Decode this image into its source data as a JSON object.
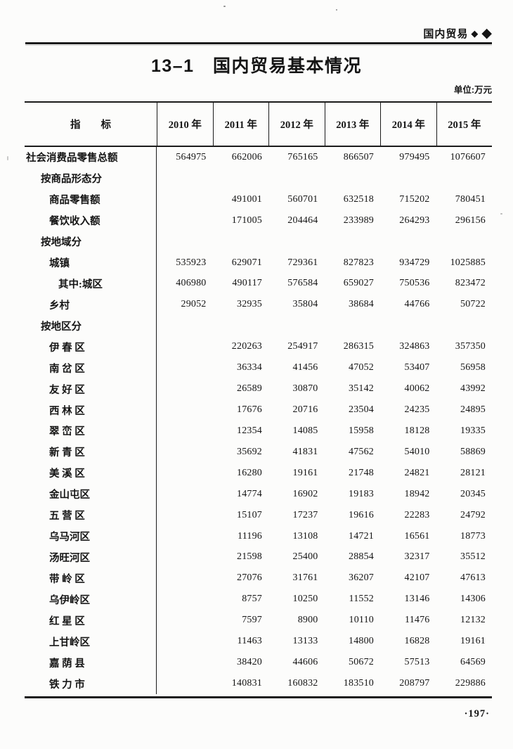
{
  "page_header": {
    "section_label": "国内贸易",
    "diamond_small": "◆",
    "diamond_large": "◆"
  },
  "title": "13–1　国内贸易基本情况",
  "unit_label": "单位:万元",
  "page_number": "·197·",
  "chart_data": {
    "type": "table",
    "title": "13–1 国内贸易基本情况",
    "unit": "万元",
    "columns": [
      "指标",
      "2010 年",
      "2011 年",
      "2012 年",
      "2013 年",
      "2014 年",
      "2015 年"
    ]
  },
  "table": {
    "indicator_header": "指　　标",
    "year_headers": [
      "2010 年",
      "2011 年",
      "2012 年",
      "2013 年",
      "2014 年",
      "2015 年"
    ],
    "rows": [
      {
        "label": "社会消费品零售总额",
        "indent": 0,
        "values": [
          "564975",
          "662006",
          "765165",
          "866507",
          "979495",
          "1076607"
        ]
      },
      {
        "label": "按商品形态分",
        "indent": 1,
        "values": [
          "",
          "",
          "",
          "",
          "",
          ""
        ]
      },
      {
        "label": "商品零售额",
        "indent": 2,
        "values": [
          "",
          "491001",
          "560701",
          "632518",
          "715202",
          "780451"
        ]
      },
      {
        "label": "餐饮收入额",
        "indent": 2,
        "values": [
          "",
          "171005",
          "204464",
          "233989",
          "264293",
          "296156"
        ]
      },
      {
        "label": "按地域分",
        "indent": 1,
        "values": [
          "",
          "",
          "",
          "",
          "",
          ""
        ]
      },
      {
        "label": "城镇",
        "indent": 2,
        "values": [
          "535923",
          "629071",
          "729361",
          "827823",
          "934729",
          "1025885"
        ]
      },
      {
        "label": "其中:城区",
        "indent": 3,
        "values": [
          "406980",
          "490117",
          "576584",
          "659027",
          "750536",
          "823472"
        ]
      },
      {
        "label": "乡村",
        "indent": 2,
        "values": [
          "29052",
          "32935",
          "35804",
          "38684",
          "44766",
          "50722"
        ]
      },
      {
        "label": "按地区分",
        "indent": 1,
        "values": [
          "",
          "",
          "",
          "",
          "",
          ""
        ]
      },
      {
        "label": "伊 春 区",
        "indent": 2,
        "values": [
          "",
          "220263",
          "254917",
          "286315",
          "324863",
          "357350"
        ]
      },
      {
        "label": "南 岔 区",
        "indent": 2,
        "values": [
          "",
          "36334",
          "41456",
          "47052",
          "53407",
          "56958"
        ]
      },
      {
        "label": "友 好 区",
        "indent": 2,
        "values": [
          "",
          "26589",
          "30870",
          "35142",
          "40062",
          "43992"
        ]
      },
      {
        "label": "西 林 区",
        "indent": 2,
        "values": [
          "",
          "17676",
          "20716",
          "23504",
          "24235",
          "24895"
        ]
      },
      {
        "label": "翠 峦 区",
        "indent": 2,
        "values": [
          "",
          "12354",
          "14085",
          "15958",
          "18128",
          "19335"
        ]
      },
      {
        "label": "新 青 区",
        "indent": 2,
        "values": [
          "",
          "35692",
          "41831",
          "47562",
          "54010",
          "58869"
        ]
      },
      {
        "label": "美 溪 区",
        "indent": 2,
        "values": [
          "",
          "16280",
          "19161",
          "21748",
          "24821",
          "28121"
        ]
      },
      {
        "label": "金山屯区",
        "indent": 2,
        "values": [
          "",
          "14774",
          "16902",
          "19183",
          "18942",
          "20345"
        ]
      },
      {
        "label": "五 营 区",
        "indent": 2,
        "values": [
          "",
          "15107",
          "17237",
          "19616",
          "22283",
          "24792"
        ]
      },
      {
        "label": "乌马河区",
        "indent": 2,
        "values": [
          "",
          "11196",
          "13108",
          "14721",
          "16561",
          "18773"
        ]
      },
      {
        "label": "汤旺河区",
        "indent": 2,
        "values": [
          "",
          "21598",
          "25400",
          "28854",
          "32317",
          "35512"
        ]
      },
      {
        "label": "带 岭 区",
        "indent": 2,
        "values": [
          "",
          "27076",
          "31761",
          "36207",
          "42107",
          "47613"
        ]
      },
      {
        "label": "乌伊岭区",
        "indent": 2,
        "values": [
          "",
          "8757",
          "10250",
          "11552",
          "13146",
          "14306"
        ]
      },
      {
        "label": "红 星 区",
        "indent": 2,
        "values": [
          "",
          "7597",
          "8900",
          "10110",
          "11476",
          "12132"
        ]
      },
      {
        "label": "上甘岭区",
        "indent": 2,
        "values": [
          "",
          "11463",
          "13133",
          "14800",
          "16828",
          "19161"
        ]
      },
      {
        "label": "嘉 荫 县",
        "indent": 2,
        "values": [
          "",
          "38420",
          "44606",
          "50672",
          "57513",
          "64569"
        ]
      },
      {
        "label": "铁 力 市",
        "indent": 2,
        "values": [
          "",
          "140831",
          "160832",
          "183510",
          "208797",
          "229886"
        ]
      }
    ]
  }
}
